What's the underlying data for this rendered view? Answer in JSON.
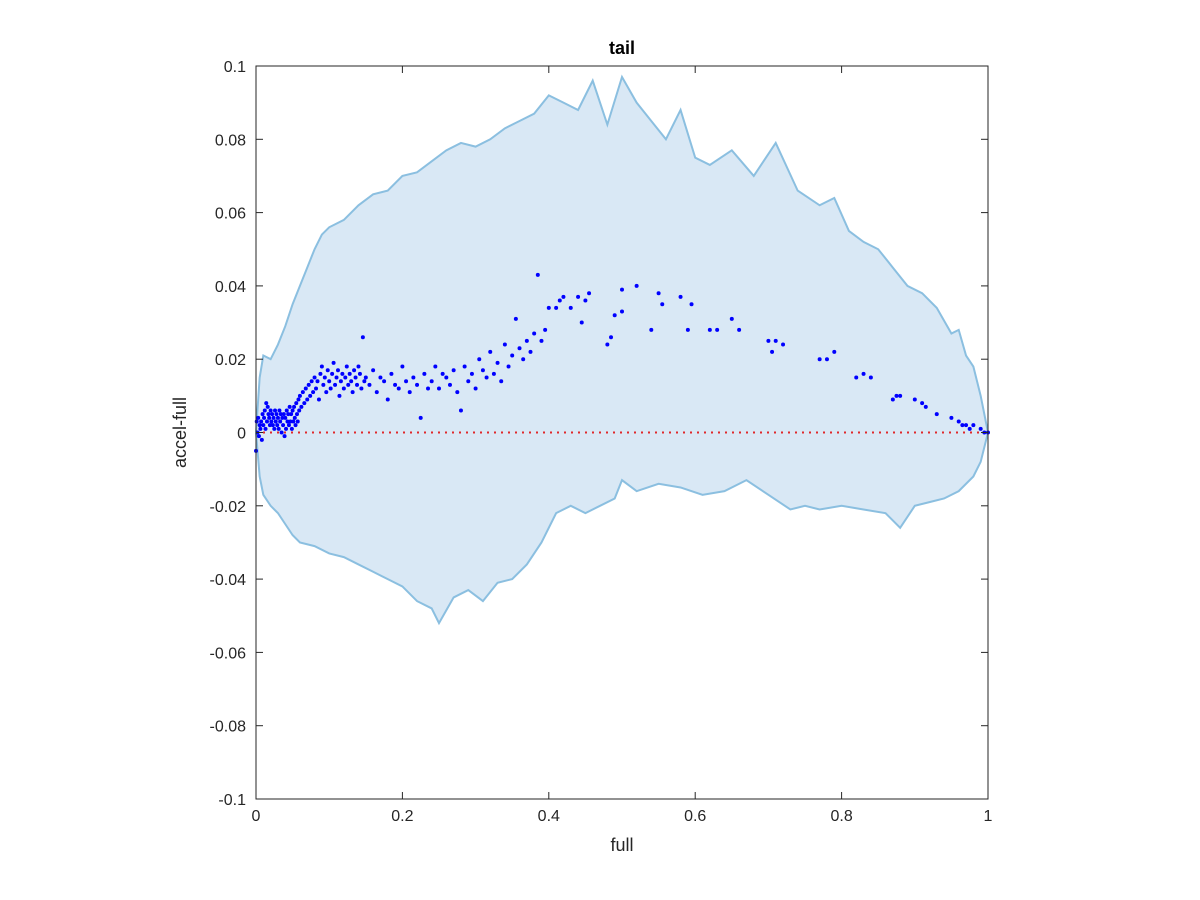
{
  "chart_data": {
    "type": "scatter",
    "title": "tail",
    "xlabel": "full",
    "ylabel": "accel-full",
    "xlim": [
      0,
      1
    ],
    "ylim": [
      -0.1,
      0.1
    ],
    "xticks": [
      0,
      0.2,
      0.4,
      0.6,
      0.8,
      1
    ],
    "xtick_labels": [
      "0",
      "0.2",
      "0.4",
      "0.6",
      "0.8",
      "1"
    ],
    "yticks": [
      -0.1,
      -0.08,
      -0.06,
      -0.04,
      -0.02,
      0,
      0.02,
      0.04,
      0.06,
      0.08,
      0.1
    ],
    "ytick_labels": [
      "-0.1",
      "-0.08",
      "-0.06",
      "-0.04",
      "-0.02",
      "0",
      "0.02",
      "0.04",
      "0.06",
      "0.08",
      "0.1"
    ],
    "grid": false,
    "band": {
      "color": "#d9e8f5",
      "edge_color": "#8bbfe0",
      "upper": [
        [
          0,
          0.0
        ],
        [
          0.005,
          0.015
        ],
        [
          0.01,
          0.021
        ],
        [
          0.02,
          0.02
        ],
        [
          0.03,
          0.024
        ],
        [
          0.04,
          0.029
        ],
        [
          0.05,
          0.035
        ],
        [
          0.06,
          0.04
        ],
        [
          0.07,
          0.045
        ],
        [
          0.08,
          0.05
        ],
        [
          0.09,
          0.054
        ],
        [
          0.1,
          0.056
        ],
        [
          0.12,
          0.058
        ],
        [
          0.14,
          0.062
        ],
        [
          0.16,
          0.065
        ],
        [
          0.18,
          0.066
        ],
        [
          0.2,
          0.07
        ],
        [
          0.22,
          0.071
        ],
        [
          0.24,
          0.074
        ],
        [
          0.26,
          0.077
        ],
        [
          0.28,
          0.079
        ],
        [
          0.3,
          0.078
        ],
        [
          0.32,
          0.08
        ],
        [
          0.34,
          0.083
        ],
        [
          0.36,
          0.085
        ],
        [
          0.38,
          0.087
        ],
        [
          0.4,
          0.092
        ],
        [
          0.42,
          0.09
        ],
        [
          0.44,
          0.088
        ],
        [
          0.46,
          0.096
        ],
        [
          0.48,
          0.084
        ],
        [
          0.5,
          0.097
        ],
        [
          0.52,
          0.09
        ],
        [
          0.54,
          0.085
        ],
        [
          0.56,
          0.08
        ],
        [
          0.58,
          0.088
        ],
        [
          0.6,
          0.075
        ],
        [
          0.62,
          0.073
        ],
        [
          0.65,
          0.077
        ],
        [
          0.68,
          0.07
        ],
        [
          0.71,
          0.079
        ],
        [
          0.74,
          0.066
        ],
        [
          0.77,
          0.062
        ],
        [
          0.79,
          0.064
        ],
        [
          0.81,
          0.055
        ],
        [
          0.83,
          0.052
        ],
        [
          0.85,
          0.05
        ],
        [
          0.87,
          0.045
        ],
        [
          0.89,
          0.04
        ],
        [
          0.91,
          0.038
        ],
        [
          0.93,
          0.034
        ],
        [
          0.95,
          0.027
        ],
        [
          0.96,
          0.028
        ],
        [
          0.97,
          0.021
        ],
        [
          0.98,
          0.018
        ],
        [
          0.99,
          0.01
        ],
        [
          1.0,
          0.0
        ]
      ],
      "lower": [
        [
          0,
          0.0
        ],
        [
          0.005,
          -0.012
        ],
        [
          0.01,
          -0.017
        ],
        [
          0.02,
          -0.02
        ],
        [
          0.03,
          -0.022
        ],
        [
          0.04,
          -0.025
        ],
        [
          0.05,
          -0.028
        ],
        [
          0.06,
          -0.03
        ],
        [
          0.08,
          -0.031
        ],
        [
          0.1,
          -0.033
        ],
        [
          0.12,
          -0.034
        ],
        [
          0.14,
          -0.036
        ],
        [
          0.16,
          -0.038
        ],
        [
          0.18,
          -0.04
        ],
        [
          0.2,
          -0.042
        ],
        [
          0.22,
          -0.046
        ],
        [
          0.24,
          -0.048
        ],
        [
          0.25,
          -0.052
        ],
        [
          0.27,
          -0.045
        ],
        [
          0.29,
          -0.043
        ],
        [
          0.31,
          -0.046
        ],
        [
          0.33,
          -0.041
        ],
        [
          0.35,
          -0.04
        ],
        [
          0.37,
          -0.036
        ],
        [
          0.39,
          -0.03
        ],
        [
          0.41,
          -0.022
        ],
        [
          0.43,
          -0.02
        ],
        [
          0.45,
          -0.022
        ],
        [
          0.47,
          -0.02
        ],
        [
          0.49,
          -0.018
        ],
        [
          0.5,
          -0.013
        ],
        [
          0.52,
          -0.016
        ],
        [
          0.55,
          -0.014
        ],
        [
          0.58,
          -0.015
        ],
        [
          0.61,
          -0.017
        ],
        [
          0.64,
          -0.016
        ],
        [
          0.67,
          -0.013
        ],
        [
          0.7,
          -0.017
        ],
        [
          0.73,
          -0.021
        ],
        [
          0.75,
          -0.02
        ],
        [
          0.77,
          -0.021
        ],
        [
          0.8,
          -0.02
        ],
        [
          0.83,
          -0.021
        ],
        [
          0.86,
          -0.022
        ],
        [
          0.88,
          -0.026
        ],
        [
          0.9,
          -0.02
        ],
        [
          0.92,
          -0.019
        ],
        [
          0.94,
          -0.018
        ],
        [
          0.96,
          -0.016
        ],
        [
          0.98,
          -0.012
        ],
        [
          0.99,
          -0.008
        ],
        [
          1.0,
          0.0
        ]
      ]
    },
    "reference_line": {
      "y": 0,
      "color": "#e0282a",
      "style": "dotted"
    },
    "series": [
      {
        "color": "#0000ff",
        "points": [
          [
            0,
            -0.005
          ],
          [
            0.001,
            0.003
          ],
          [
            0.002,
            0.0
          ],
          [
            0.003,
            0.004
          ],
          [
            0.004,
            -0.001
          ],
          [
            0.005,
            0.002
          ],
          [
            0.006,
            0.001
          ],
          [
            0.007,
            0.003
          ],
          [
            0.008,
            -0.002
          ],
          [
            0.009,
            0.005
          ],
          [
            0.01,
            0.002
          ],
          [
            0.011,
            0.004
          ],
          [
            0.012,
            0.006
          ],
          [
            0.013,
            0.001
          ],
          [
            0.014,
            0.008
          ],
          [
            0.015,
            0.003
          ],
          [
            0.016,
            0.007
          ],
          [
            0.017,
            0.005
          ],
          [
            0.018,
            0.004
          ],
          [
            0.019,
            0.002
          ],
          [
            0.02,
            0.006
          ],
          [
            0.021,
            0.003
          ],
          [
            0.022,
            0.005
          ],
          [
            0.023,
            0.002
          ],
          [
            0.024,
            0.004
          ],
          [
            0.025,
            0.001
          ],
          [
            0.026,
            0.006
          ],
          [
            0.027,
            0.003
          ],
          [
            0.028,
            0.005
          ],
          [
            0.029,
            0.002
          ],
          [
            0.03,
            0.004
          ],
          [
            0.031,
            0.001
          ],
          [
            0.032,
            0.006
          ],
          [
            0.033,
            0.003
          ],
          [
            0.034,
            0.005
          ],
          [
            0.035,
            0.0
          ],
          [
            0.036,
            0.004
          ],
          [
            0.037,
            0.002
          ],
          [
            0.038,
            0.005
          ],
          [
            0.039,
            -0.001
          ],
          [
            0.04,
            0.004
          ],
          [
            0.041,
            0.001
          ],
          [
            0.042,
            0.006
          ],
          [
            0.043,
            0.003
          ],
          [
            0.044,
            0.005
          ],
          [
            0.045,
            0.002
          ],
          [
            0.046,
            0.007
          ],
          [
            0.047,
            0.003
          ],
          [
            0.048,
            0.005
          ],
          [
            0.049,
            0.001
          ],
          [
            0.05,
            0.006
          ],
          [
            0.051,
            0.003
          ],
          [
            0.052,
            0.007
          ],
          [
            0.053,
            0.004
          ],
          [
            0.054,
            0.002
          ],
          [
            0.055,
            0.008
          ],
          [
            0.056,
            0.005
          ],
          [
            0.057,
            0.003
          ],
          [
            0.058,
            0.009
          ],
          [
            0.059,
            0.006
          ],
          [
            0.06,
            0.01
          ],
          [
            0.062,
            0.007
          ],
          [
            0.064,
            0.011
          ],
          [
            0.066,
            0.008
          ],
          [
            0.068,
            0.012
          ],
          [
            0.07,
            0.009
          ],
          [
            0.072,
            0.013
          ],
          [
            0.074,
            0.01
          ],
          [
            0.076,
            0.014
          ],
          [
            0.078,
            0.011
          ],
          [
            0.08,
            0.015
          ],
          [
            0.082,
            0.012
          ],
          [
            0.084,
            0.014
          ],
          [
            0.086,
            0.009
          ],
          [
            0.088,
            0.016
          ],
          [
            0.09,
            0.018
          ],
          [
            0.092,
            0.013
          ],
          [
            0.094,
            0.015
          ],
          [
            0.096,
            0.011
          ],
          [
            0.098,
            0.017
          ],
          [
            0.1,
            0.014
          ],
          [
            0.102,
            0.012
          ],
          [
            0.104,
            0.016
          ],
          [
            0.106,
            0.019
          ],
          [
            0.108,
            0.013
          ],
          [
            0.11,
            0.015
          ],
          [
            0.112,
            0.017
          ],
          [
            0.114,
            0.01
          ],
          [
            0.116,
            0.014
          ],
          [
            0.118,
            0.016
          ],
          [
            0.12,
            0.012
          ],
          [
            0.122,
            0.015
          ],
          [
            0.124,
            0.018
          ],
          [
            0.126,
            0.013
          ],
          [
            0.128,
            0.016
          ],
          [
            0.13,
            0.014
          ],
          [
            0.132,
            0.011
          ],
          [
            0.134,
            0.017
          ],
          [
            0.136,
            0.015
          ],
          [
            0.138,
            0.013
          ],
          [
            0.14,
            0.018
          ],
          [
            0.142,
            0.016
          ],
          [
            0.144,
            0.012
          ],
          [
            0.146,
            0.026
          ],
          [
            0.148,
            0.014
          ],
          [
            0.15,
            0.015
          ],
          [
            0.155,
            0.013
          ],
          [
            0.16,
            0.017
          ],
          [
            0.165,
            0.011
          ],
          [
            0.17,
            0.015
          ],
          [
            0.175,
            0.014
          ],
          [
            0.18,
            0.009
          ],
          [
            0.185,
            0.016
          ],
          [
            0.19,
            0.013
          ],
          [
            0.195,
            0.012
          ],
          [
            0.2,
            0.018
          ],
          [
            0.205,
            0.014
          ],
          [
            0.21,
            0.011
          ],
          [
            0.215,
            0.015
          ],
          [
            0.22,
            0.013
          ],
          [
            0.225,
            0.004
          ],
          [
            0.23,
            0.016
          ],
          [
            0.235,
            0.012
          ],
          [
            0.24,
            0.014
          ],
          [
            0.245,
            0.018
          ],
          [
            0.25,
            0.012
          ],
          [
            0.255,
            0.016
          ],
          [
            0.26,
            0.015
          ],
          [
            0.265,
            0.013
          ],
          [
            0.27,
            0.017
          ],
          [
            0.275,
            0.011
          ],
          [
            0.28,
            0.006
          ],
          [
            0.285,
            0.018
          ],
          [
            0.29,
            0.014
          ],
          [
            0.295,
            0.016
          ],
          [
            0.3,
            0.012
          ],
          [
            0.305,
            0.02
          ],
          [
            0.31,
            0.017
          ],
          [
            0.315,
            0.015
          ],
          [
            0.32,
            0.022
          ],
          [
            0.325,
            0.016
          ],
          [
            0.33,
            0.019
          ],
          [
            0.335,
            0.014
          ],
          [
            0.34,
            0.024
          ],
          [
            0.345,
            0.018
          ],
          [
            0.35,
            0.021
          ],
          [
            0.355,
            0.031
          ],
          [
            0.36,
            0.023
          ],
          [
            0.365,
            0.02
          ],
          [
            0.37,
            0.025
          ],
          [
            0.375,
            0.022
          ],
          [
            0.38,
            0.027
          ],
          [
            0.385,
            0.043
          ],
          [
            0.39,
            0.025
          ],
          [
            0.395,
            0.028
          ],
          [
            0.4,
            0.034
          ],
          [
            0.41,
            0.034
          ],
          [
            0.415,
            0.036
          ],
          [
            0.42,
            0.037
          ],
          [
            0.43,
            0.034
          ],
          [
            0.44,
            0.037
          ],
          [
            0.445,
            0.03
          ],
          [
            0.45,
            0.036
          ],
          [
            0.455,
            0.038
          ],
          [
            0.48,
            0.024
          ],
          [
            0.485,
            0.026
          ],
          [
            0.49,
            0.032
          ],
          [
            0.5,
            0.039
          ],
          [
            0.5,
            0.033
          ],
          [
            0.52,
            0.04
          ],
          [
            0.54,
            0.028
          ],
          [
            0.55,
            0.038
          ],
          [
            0.555,
            0.035
          ],
          [
            0.58,
            0.037
          ],
          [
            0.59,
            0.028
          ],
          [
            0.595,
            0.035
          ],
          [
            0.62,
            0.028
          ],
          [
            0.63,
            0.028
          ],
          [
            0.65,
            0.031
          ],
          [
            0.66,
            0.028
          ],
          [
            0.7,
            0.025
          ],
          [
            0.705,
            0.022
          ],
          [
            0.71,
            0.025
          ],
          [
            0.72,
            0.024
          ],
          [
            0.77,
            0.02
          ],
          [
            0.78,
            0.02
          ],
          [
            0.79,
            0.022
          ],
          [
            0.82,
            0.015
          ],
          [
            0.83,
            0.016
          ],
          [
            0.84,
            0.015
          ],
          [
            0.87,
            0.009
          ],
          [
            0.875,
            0.01
          ],
          [
            0.88,
            0.01
          ],
          [
            0.9,
            0.009
          ],
          [
            0.91,
            0.008
          ],
          [
            0.915,
            0.007
          ],
          [
            0.93,
            0.005
          ],
          [
            0.95,
            0.004
          ],
          [
            0.96,
            0.003
          ],
          [
            0.965,
            0.002
          ],
          [
            0.97,
            0.002
          ],
          [
            0.975,
            0.001
          ],
          [
            0.98,
            0.002
          ],
          [
            0.99,
            0.001
          ],
          [
            0.995,
            0.0
          ],
          [
            1.0,
            0.0
          ]
        ]
      }
    ]
  }
}
